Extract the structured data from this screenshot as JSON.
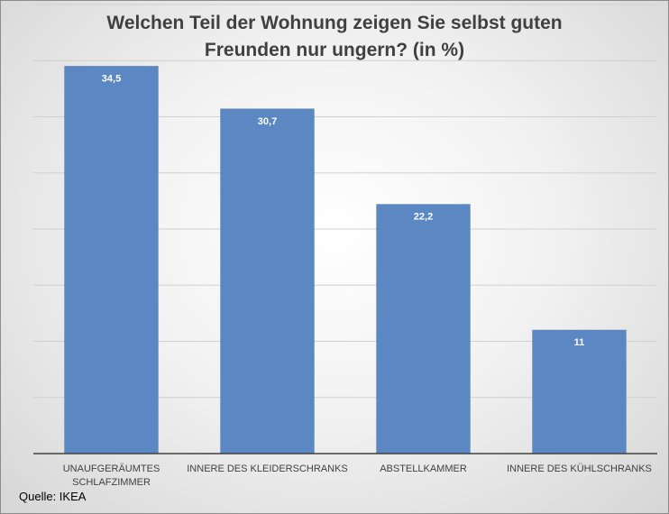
{
  "chart_data": {
    "type": "bar",
    "title": "Welchen Teil der Wohnung zeigen Sie selbst guten Freunden nur ungern? (in %)",
    "title_lines": [
      "Welchen Teil der Wohnung zeigen Sie selbst guten",
      "Freunden nur ungern? (in %)"
    ],
    "categories": [
      "UNAUFGERÄUMTES SCHLAFZIMMER",
      "INNERE DES KLEIDERSCHRANKS",
      "ABSTELLKAMMER",
      "INNERE DES KÜHLSCHRANKS"
    ],
    "category_lines": [
      [
        "UNAUFGERÄUMTES",
        "SCHLAFZIMMER"
      ],
      [
        "INNERE DES KLEIDERSCHRANKS"
      ],
      [
        "ABSTELLKAMMER"
      ],
      [
        "INNERE DES KÜHLSCHRANKS"
      ]
    ],
    "values": [
      34.5,
      30.7,
      22.2,
      11
    ],
    "value_labels": [
      "34,5",
      "30,7",
      "22,2",
      "11"
    ],
    "ylim": [
      0,
      40
    ],
    "grid": true,
    "bar_color": "#5b87c2"
  },
  "source": "Quelle: IKEA"
}
